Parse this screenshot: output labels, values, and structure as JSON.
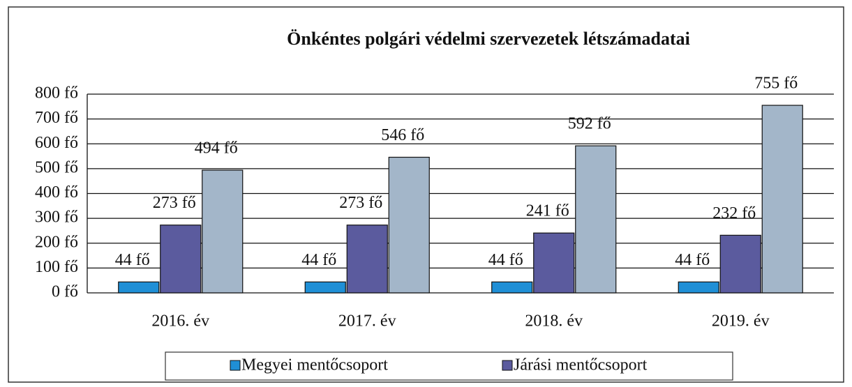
{
  "chart_data": {
    "type": "bar",
    "title": "Önkéntes polgári védelmi szervezetek létszámadatai",
    "categories": [
      "2016. év",
      "2017. év",
      "2018. év",
      "2019. év"
    ],
    "series": [
      {
        "name": "Megyei mentőcsoport",
        "color": "#1f8fd6",
        "values": [
          44,
          44,
          44,
          44
        ],
        "value_labels": [
          "44 fő",
          "44 fő",
          "44 fő",
          "44 fő"
        ]
      },
      {
        "name": "Járási mentőcsoport",
        "color": "#5b5b9e",
        "values": [
          273,
          273,
          241,
          232
        ],
        "value_labels": [
          "273 fő",
          "273 fő",
          "241 fő",
          "232 fő"
        ]
      },
      {
        "color": "#a3b6c9",
        "values": [
          494,
          546,
          592,
          755
        ],
        "value_labels": [
          "494 fő",
          "546 fő",
          "592 fő",
          "755 fő"
        ]
      }
    ],
    "ylim": [
      0,
      800
    ],
    "yticks": [
      {
        "value": 0,
        "label": "0 fő"
      },
      {
        "value": 100,
        "label": "100 fő"
      },
      {
        "value": 200,
        "label": "200 fő"
      },
      {
        "value": 300,
        "label": "300 fő"
      },
      {
        "value": 400,
        "label": "400 fő"
      },
      {
        "value": 500,
        "label": "500 fő"
      },
      {
        "value": 600,
        "label": "600 fő"
      },
      {
        "value": 700,
        "label": "700 fő"
      },
      {
        "value": 800,
        "label": "800 fő"
      }
    ],
    "grid": true,
    "legend": "bottom"
  }
}
